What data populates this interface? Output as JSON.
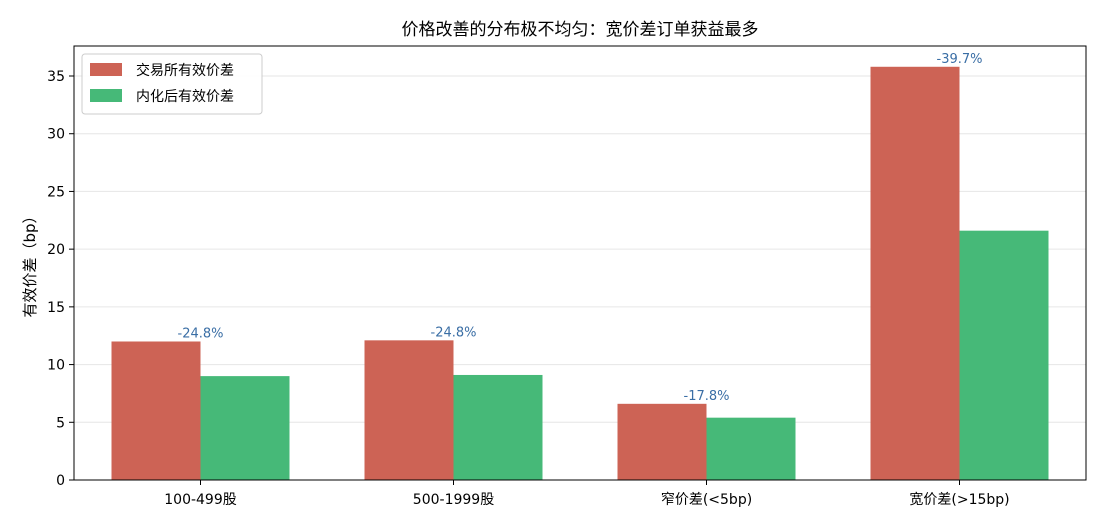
{
  "chart_data": {
    "type": "bar",
    "title": "价格改善的分布极不均匀：宽价差订单获益最多",
    "xlabel": "",
    "ylabel": "有效价差（bp）",
    "categories": [
      "100-499股",
      "500-1999股",
      "窄价差(<5bp)",
      "宽价差(>15bp)"
    ],
    "series": [
      {
        "name": "交易所有效价差",
        "values": [
          12.0,
          12.1,
          6.6,
          35.8
        ],
        "color": "#cd6355"
      },
      {
        "name": "内化后有效价差",
        "values": [
          9.0,
          9.1,
          5.4,
          21.6
        ],
        "color": "#46b978"
      }
    ],
    "annotations": [
      "-24.8%",
      "-24.8%",
      "-17.8%",
      "-39.7%"
    ],
    "ylim": [
      0,
      37.6
    ],
    "yticks": [
      0,
      5,
      10,
      15,
      20,
      25,
      30,
      35
    ],
    "grid": true,
    "legend_position": "top-left"
  }
}
